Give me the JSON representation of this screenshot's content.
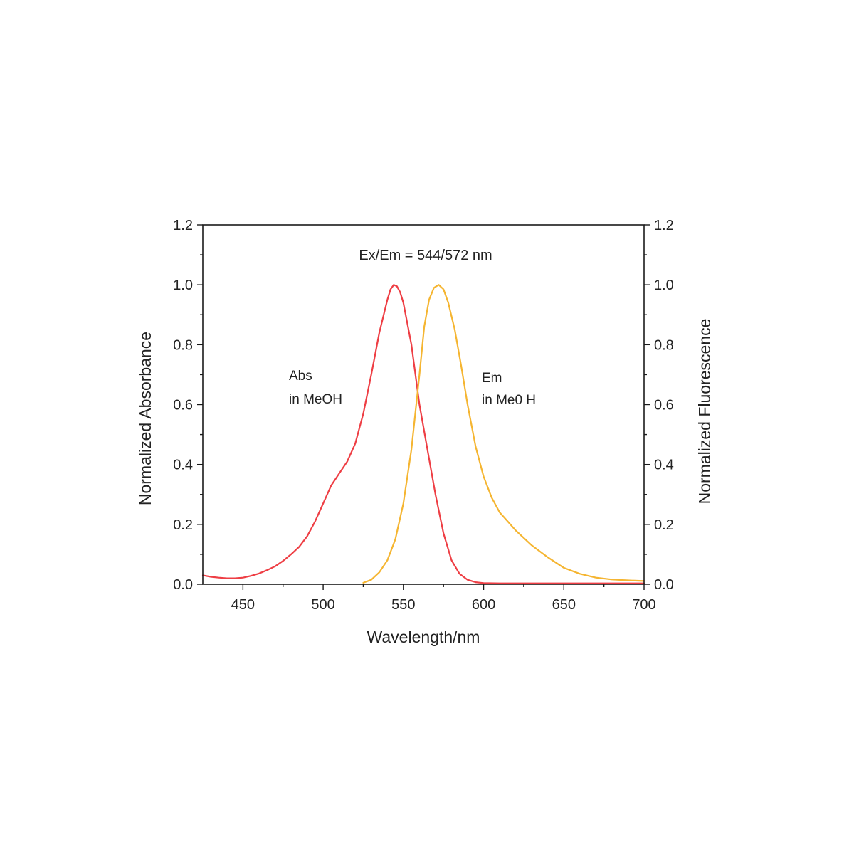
{
  "chart_data": {
    "type": "line",
    "annotation_top": "Ex/Em = 544/572 nm",
    "xlabel": "Wavelength/nm",
    "ylabel_left": "Normalized Absorbance",
    "ylabel_right": "Normalized Fluorescence",
    "xlim": [
      425,
      700
    ],
    "ylim": [
      0,
      1.2
    ],
    "x_ticks": [
      450,
      500,
      550,
      600,
      650,
      700
    ],
    "x_tick_labels": [
      "450",
      "500",
      "550",
      "600",
      "650",
      "700"
    ],
    "y_ticks": [
      0,
      0.2,
      0.4,
      0.6,
      0.8,
      1.0,
      1.2
    ],
    "y_tick_labels": [
      "0.0",
      "0.2",
      "0.4",
      "0.6",
      "0.8",
      "1.0",
      "1.2"
    ],
    "grid": false,
    "series": [
      {
        "label_line1": "Abs",
        "label_line2": "in MeOH",
        "color": "#ee3e44",
        "x": [
          425,
          430,
          435,
          440,
          445,
          450,
          455,
          460,
          465,
          470,
          475,
          480,
          485,
          490,
          495,
          500,
          505,
          510,
          515,
          520,
          525,
          530,
          535,
          540,
          542,
          544,
          546,
          548,
          550,
          555,
          560,
          565,
          570,
          575,
          580,
          585,
          590,
          595,
          600,
          610,
          620,
          640,
          660,
          680,
          700
        ],
        "y": [
          0.03,
          0.025,
          0.022,
          0.02,
          0.02,
          0.022,
          0.028,
          0.036,
          0.047,
          0.06,
          0.078,
          0.1,
          0.125,
          0.16,
          0.21,
          0.27,
          0.33,
          0.37,
          0.41,
          0.47,
          0.57,
          0.7,
          0.84,
          0.95,
          0.985,
          1.0,
          0.995,
          0.975,
          0.94,
          0.8,
          0.6,
          0.45,
          0.3,
          0.17,
          0.08,
          0.035,
          0.015,
          0.007,
          0.004,
          0.003,
          0.003,
          0.003,
          0.003,
          0.003,
          0.003
        ]
      },
      {
        "label_line1": "Em",
        "label_line2": "in Me0 H",
        "color": "#f5b531",
        "x": [
          525,
          530,
          535,
          540,
          545,
          550,
          555,
          560,
          563,
          566,
          569,
          572,
          575,
          578,
          582,
          586,
          590,
          595,
          600,
          605,
          610,
          615,
          620,
          630,
          640,
          650,
          660,
          670,
          680,
          690,
          700
        ],
        "y": [
          0.005,
          0.015,
          0.04,
          0.08,
          0.15,
          0.27,
          0.45,
          0.7,
          0.86,
          0.95,
          0.99,
          1.0,
          0.985,
          0.94,
          0.85,
          0.73,
          0.6,
          0.46,
          0.36,
          0.29,
          0.24,
          0.21,
          0.18,
          0.13,
          0.09,
          0.055,
          0.035,
          0.022,
          0.016,
          0.013,
          0.011
        ]
      }
    ]
  }
}
